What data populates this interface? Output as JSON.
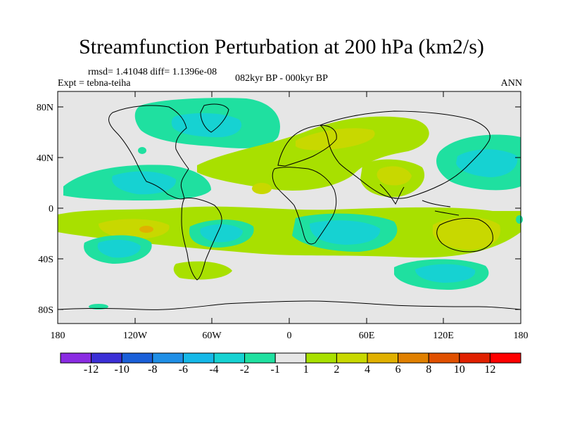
{
  "title": "Streamfunction Perturbation at 200 hPa (km2/s)",
  "subtitle_left_line1": "rmsd= 1.41048 diff= 1.1396e-08",
  "subtitle_left_line2": "Expt = tebna-teiha",
  "subtitle_center": "082kyr BP - 000kyr BP",
  "subtitle_right": "ANN",
  "y_ticks": [
    "80N",
    "40N",
    "0",
    "40S",
    "80S"
  ],
  "x_ticks": [
    "180",
    "120W",
    "60W",
    "0",
    "60E",
    "120E",
    "180"
  ],
  "colorbar": {
    "labels": [
      "-12",
      "-10",
      "-8",
      "-6",
      "-4",
      "-2",
      "-1",
      "1",
      "2",
      "4",
      "6",
      "8",
      "10",
      "12"
    ],
    "colors": [
      "#8a2be2",
      "#3b2fd6",
      "#1a5fd8",
      "#1f8fe6",
      "#15b8e8",
      "#16d2d2",
      "#1fe0a0",
      "#e6e6e6",
      "#a8e000",
      "#c8d800",
      "#e0b000",
      "#e08000",
      "#e05000",
      "#e02000",
      "#ff0000"
    ]
  },
  "colors": {
    "background": "#e6e6e6",
    "positive": "#a8e000",
    "negative": "#1fe0a0"
  }
}
